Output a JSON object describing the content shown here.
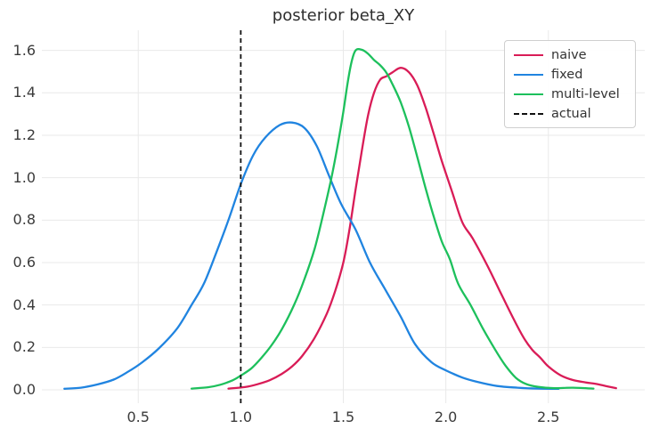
{
  "title": "posterior beta_XY",
  "colors": {
    "naive": "#d91c57",
    "fixed": "#2084e0",
    "multi_level": "#1dc05c",
    "actual": "#111111",
    "grid": "#e9e9e9",
    "tick_text": "#3b3b3b",
    "title_text": "#2e2e2e",
    "legend_border": "#cfcfcf"
  },
  "legend": {
    "position": "upper right",
    "items": [
      {
        "label": "naive",
        "color": "#d91c57",
        "dashed": false
      },
      {
        "label": "fixed",
        "color": "#2084e0",
        "dashed": false
      },
      {
        "label": "multi-level",
        "color": "#1dc05c",
        "dashed": false
      },
      {
        "label": "actual",
        "color": "#111111",
        "dashed": true
      }
    ]
  },
  "chart_data": {
    "type": "line",
    "title": "posterior beta_XY",
    "xlabel": "",
    "ylabel": "",
    "grid": true,
    "legend_position": "upper right",
    "xlim": [
      0.03,
      2.97
    ],
    "ylim": [
      -0.063,
      1.695
    ],
    "x_ticks": [
      0.5,
      1.0,
      1.5,
      2.0,
      2.5
    ],
    "x_tick_labels": [
      "0.5",
      "1.0",
      "1.5",
      "2.0",
      "2.5"
    ],
    "y_ticks": [
      0.0,
      0.2,
      0.4,
      0.6,
      0.8,
      1.0,
      1.2,
      1.4,
      1.6
    ],
    "y_tick_labels": [
      "0.0",
      "0.2",
      "0.4",
      "0.6",
      "0.8",
      "1.0",
      "1.2",
      "1.4",
      "1.6"
    ],
    "vline": {
      "name": "actual",
      "x": 1.0,
      "color": "#111111",
      "style": "dashed"
    },
    "series": [
      {
        "name": "naive",
        "color": "#d91c57",
        "peak": {
          "x": 1.78,
          "y": 1.52
        },
        "points": [
          [
            0.94,
            0.006
          ],
          [
            1.02,
            0.013
          ],
          [
            1.08,
            0.026
          ],
          [
            1.14,
            0.045
          ],
          [
            1.2,
            0.075
          ],
          [
            1.25,
            0.11
          ],
          [
            1.3,
            0.16
          ],
          [
            1.36,
            0.245
          ],
          [
            1.42,
            0.36
          ],
          [
            1.46,
            0.465
          ],
          [
            1.5,
            0.6
          ],
          [
            1.53,
            0.755
          ],
          [
            1.56,
            0.945
          ],
          [
            1.59,
            1.125
          ],
          [
            1.62,
            1.29
          ],
          [
            1.65,
            1.4
          ],
          [
            1.68,
            1.462
          ],
          [
            1.71,
            1.478
          ],
          [
            1.74,
            1.497
          ],
          [
            1.78,
            1.518
          ],
          [
            1.82,
            1.497
          ],
          [
            1.86,
            1.437
          ],
          [
            1.9,
            1.335
          ],
          [
            1.94,
            1.21
          ],
          [
            1.98,
            1.08
          ],
          [
            2.03,
            0.935
          ],
          [
            2.08,
            0.79
          ],
          [
            2.13,
            0.715
          ],
          [
            2.2,
            0.59
          ],
          [
            2.27,
            0.452
          ],
          [
            2.33,
            0.335
          ],
          [
            2.38,
            0.245
          ],
          [
            2.42,
            0.19
          ],
          [
            2.46,
            0.152
          ],
          [
            2.5,
            0.11
          ],
          [
            2.56,
            0.068
          ],
          [
            2.62,
            0.046
          ],
          [
            2.68,
            0.035
          ],
          [
            2.73,
            0.028
          ],
          [
            2.78,
            0.018
          ],
          [
            2.83,
            0.008
          ]
        ]
      },
      {
        "name": "fixed",
        "color": "#2084e0",
        "peak": {
          "x": 1.25,
          "y": 1.26
        },
        "points": [
          [
            0.14,
            0.005
          ],
          [
            0.22,
            0.01
          ],
          [
            0.3,
            0.025
          ],
          [
            0.38,
            0.048
          ],
          [
            0.45,
            0.085
          ],
          [
            0.52,
            0.13
          ],
          [
            0.6,
            0.195
          ],
          [
            0.69,
            0.29
          ],
          [
            0.76,
            0.4
          ],
          [
            0.82,
            0.5
          ],
          [
            0.88,
            0.645
          ],
          [
            0.94,
            0.8
          ],
          [
            1.0,
            0.97
          ],
          [
            1.06,
            1.105
          ],
          [
            1.12,
            1.19
          ],
          [
            1.19,
            1.248
          ],
          [
            1.25,
            1.26
          ],
          [
            1.31,
            1.235
          ],
          [
            1.37,
            1.15
          ],
          [
            1.43,
            1.01
          ],
          [
            1.49,
            0.875
          ],
          [
            1.56,
            0.755
          ],
          [
            1.63,
            0.6
          ],
          [
            1.7,
            0.48
          ],
          [
            1.78,
            0.345
          ],
          [
            1.85,
            0.215
          ],
          [
            1.93,
            0.13
          ],
          [
            2.0,
            0.092
          ],
          [
            2.08,
            0.058
          ],
          [
            2.15,
            0.038
          ],
          [
            2.25,
            0.018
          ],
          [
            2.35,
            0.01
          ],
          [
            2.45,
            0.006
          ],
          [
            2.55,
            0.005
          ]
        ]
      },
      {
        "name": "multi-level",
        "color": "#1dc05c",
        "peak": {
          "x": 1.56,
          "y": 1.61
        },
        "points": [
          [
            0.76,
            0.006
          ],
          [
            0.84,
            0.012
          ],
          [
            0.9,
            0.024
          ],
          [
            0.96,
            0.045
          ],
          [
            1.0,
            0.067
          ],
          [
            1.05,
            0.1
          ],
          [
            1.1,
            0.15
          ],
          [
            1.15,
            0.21
          ],
          [
            1.2,
            0.285
          ],
          [
            1.26,
            0.4
          ],
          [
            1.31,
            0.52
          ],
          [
            1.36,
            0.665
          ],
          [
            1.4,
            0.82
          ],
          [
            1.44,
            0.99
          ],
          [
            1.47,
            1.14
          ],
          [
            1.5,
            1.31
          ],
          [
            1.52,
            1.44
          ],
          [
            1.54,
            1.545
          ],
          [
            1.56,
            1.6
          ],
          [
            1.59,
            1.603
          ],
          [
            1.62,
            1.585
          ],
          [
            1.65,
            1.555
          ],
          [
            1.68,
            1.53
          ],
          [
            1.71,
            1.495
          ],
          [
            1.74,
            1.44
          ],
          [
            1.78,
            1.355
          ],
          [
            1.82,
            1.24
          ],
          [
            1.86,
            1.1
          ],
          [
            1.9,
            0.955
          ],
          [
            1.94,
            0.82
          ],
          [
            1.98,
            0.7
          ],
          [
            2.02,
            0.615
          ],
          [
            2.06,
            0.5
          ],
          [
            2.12,
            0.4
          ],
          [
            2.18,
            0.29
          ],
          [
            2.24,
            0.19
          ],
          [
            2.29,
            0.115
          ],
          [
            2.34,
            0.058
          ],
          [
            2.39,
            0.028
          ],
          [
            2.45,
            0.014
          ],
          [
            2.53,
            0.008
          ],
          [
            2.62,
            0.01
          ],
          [
            2.72,
            0.006
          ]
        ]
      }
    ]
  }
}
